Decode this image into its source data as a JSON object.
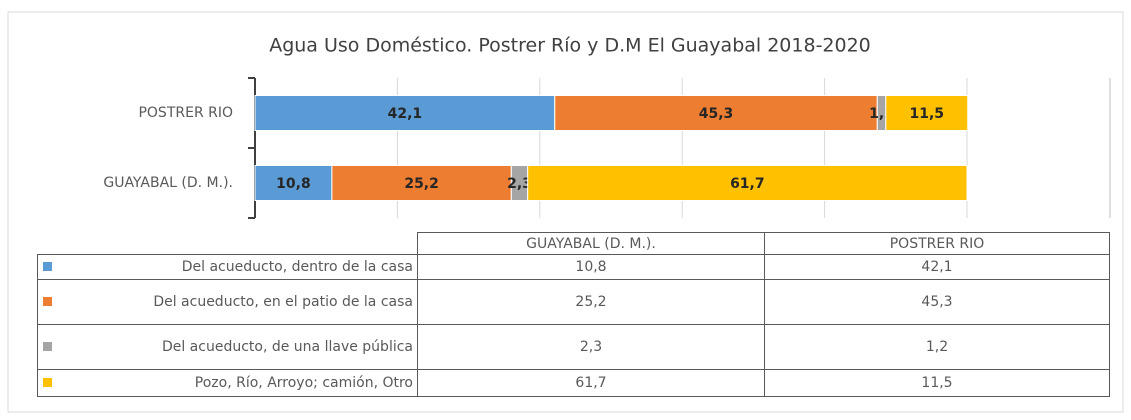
{
  "chart_data": {
    "type": "stacked_bar_horizontal",
    "title": "Agua Uso Doméstico. Postrer Río y D.M El Guayabal 2018-2020",
    "categories": [
      "GUAYABAL (D. M.).",
      "POSTRER RIO"
    ],
    "series": [
      {
        "name": "Del acueducto, dentro de la casa",
        "color": "#5b9bd5",
        "values": [
          10.8,
          42.1
        ],
        "value_labels": [
          "10,8",
          "42,1"
        ]
      },
      {
        "name": "Del acueducto, en el patio de la casa",
        "color": "#ed7d31",
        "values": [
          25.2,
          45.3
        ],
        "value_labels": [
          "25,2",
          "45,3"
        ]
      },
      {
        "name": "Del acueducto, de una llave pública",
        "color": "#a5a5a5",
        "values": [
          2.3,
          1.2
        ],
        "value_labels": [
          "2,3",
          "1,2"
        ]
      },
      {
        "name": "Pozo, Río, Arroyo; camión, Otro",
        "color": "#ffc000",
        "values": [
          61.7,
          11.5
        ],
        "value_labels": [
          "61,7",
          "11,5"
        ]
      }
    ],
    "xlim": [
      0,
      100
    ],
    "xticks": [
      0,
      20,
      40,
      60,
      80,
      100
    ],
    "grid": true
  }
}
